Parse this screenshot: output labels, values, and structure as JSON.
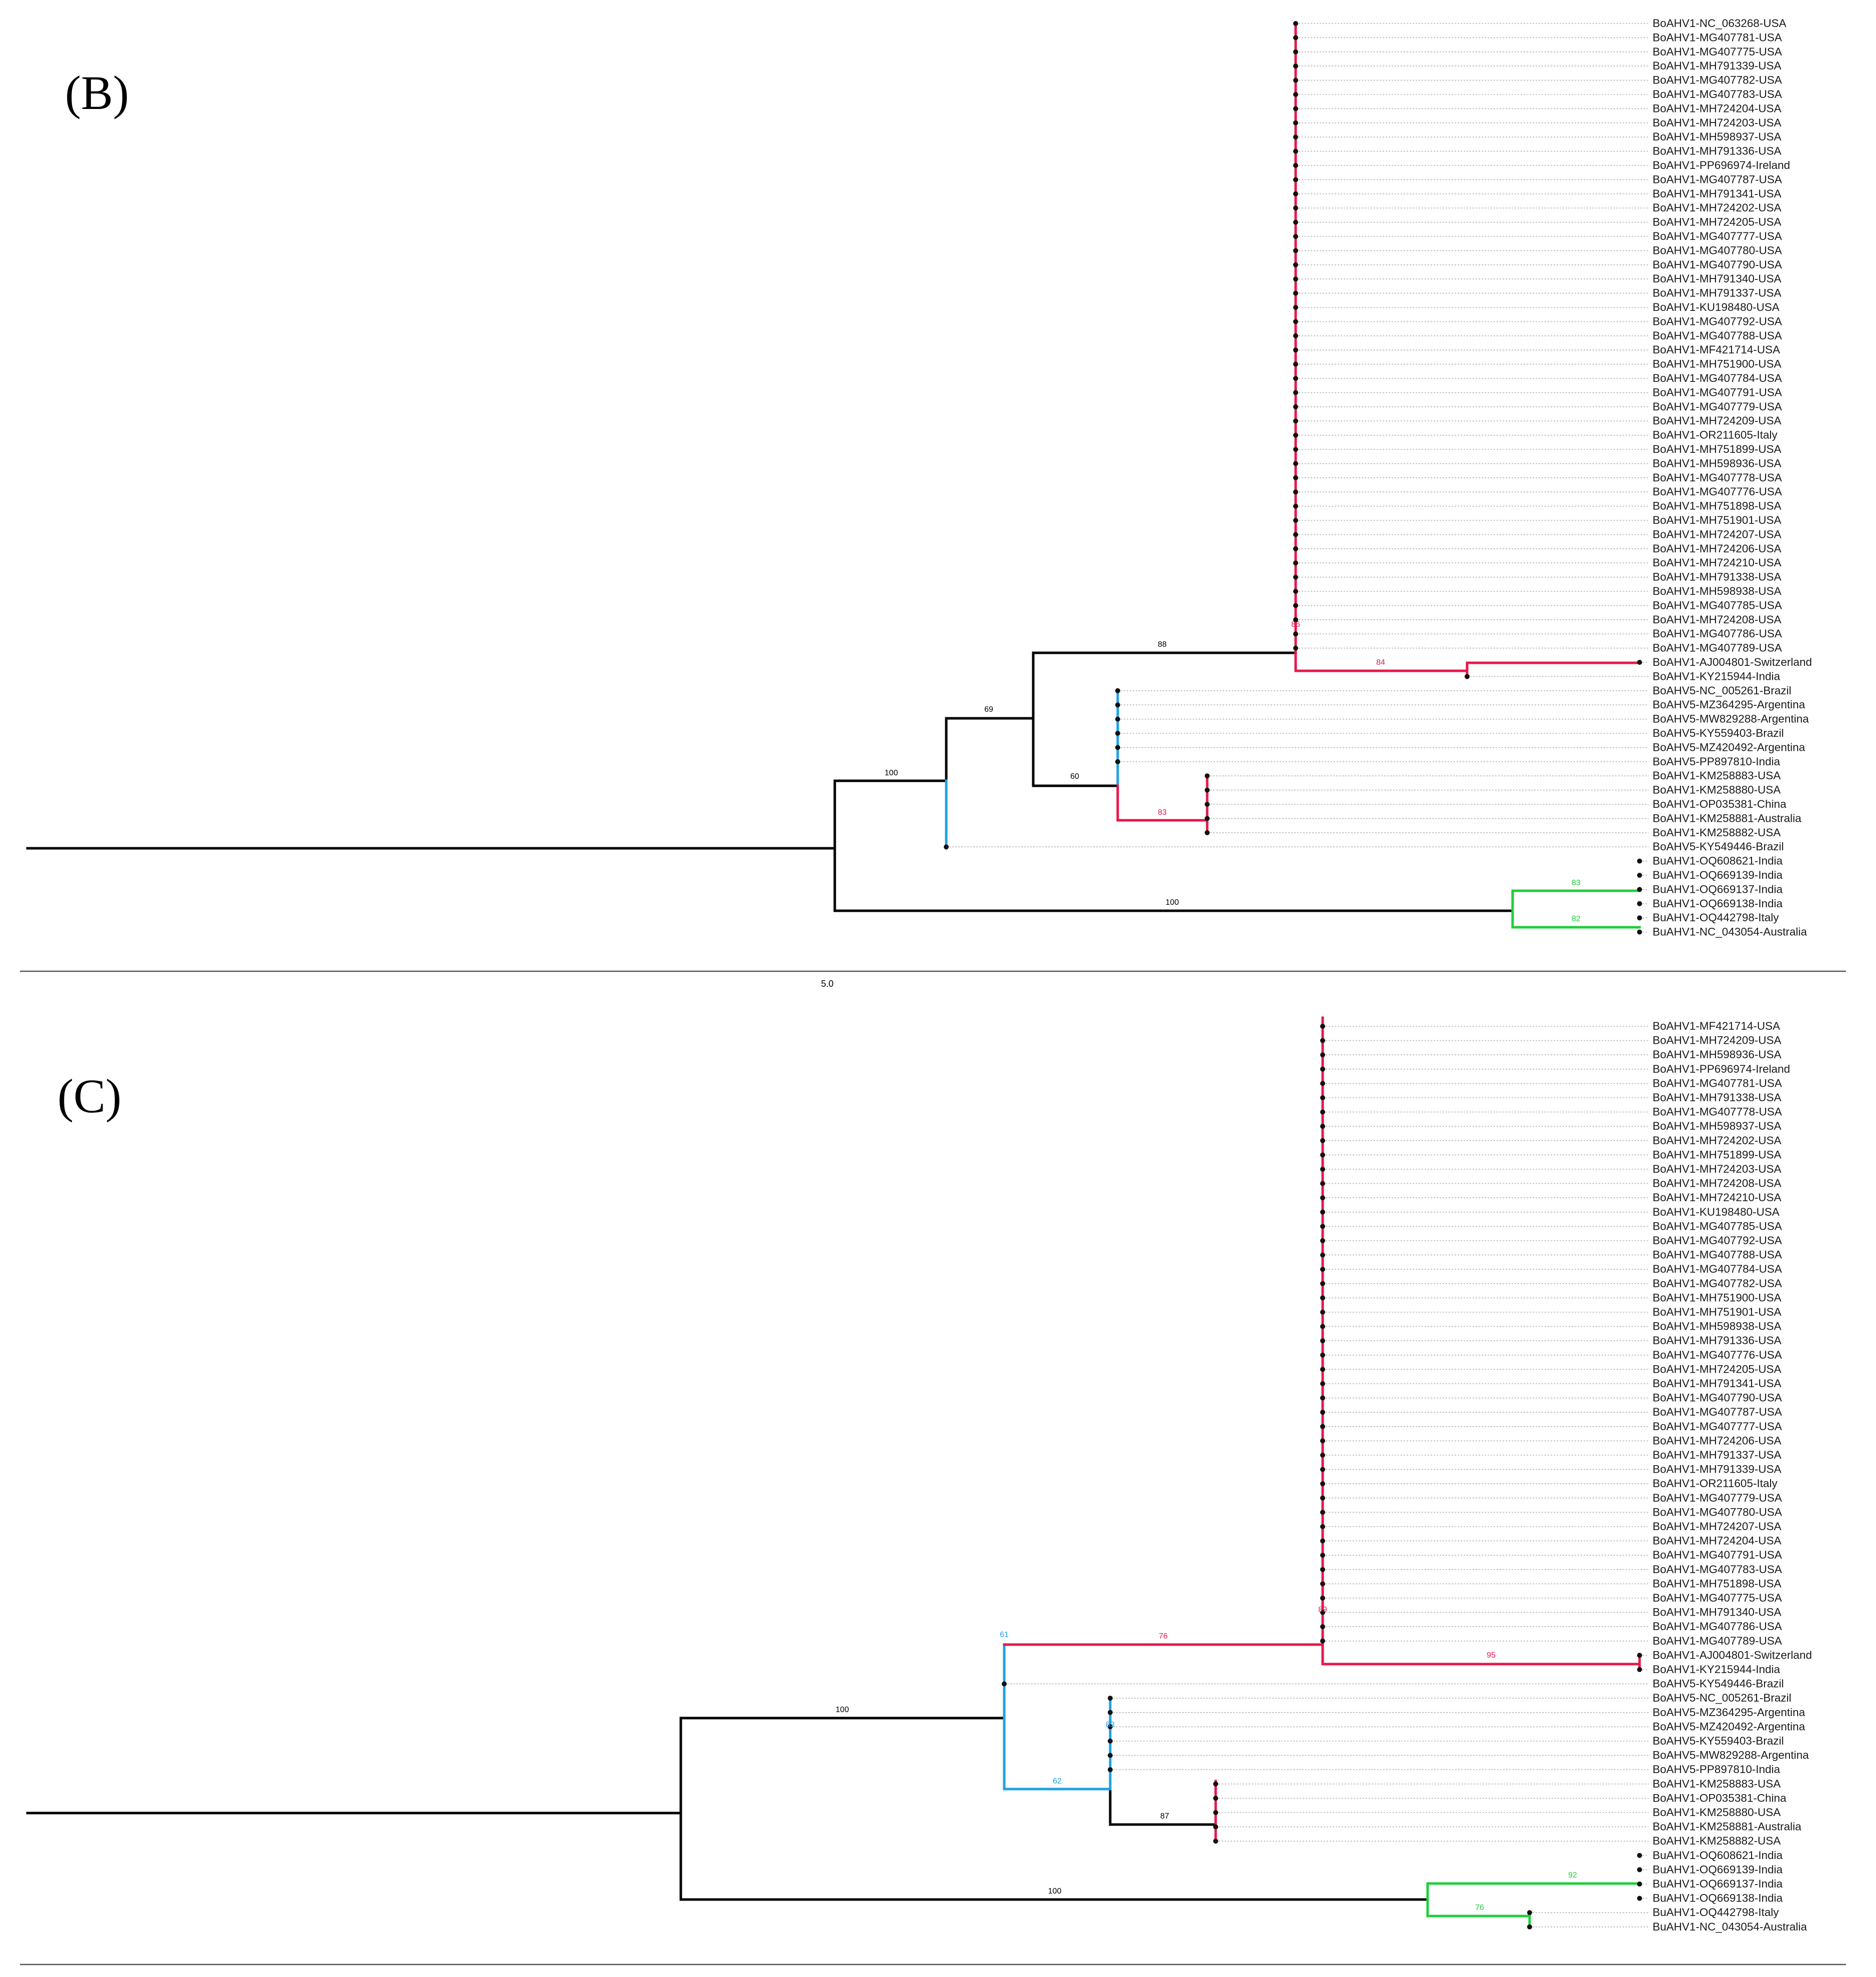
{
  "colors": {
    "black": "#000000",
    "red": "#e8174a",
    "blue": "#1ea1e6",
    "green": "#1ed03a",
    "dotted": "#b5b5b5"
  },
  "panels": [
    {
      "id": "B",
      "letter": "(B)",
      "scale_label": "5.0",
      "leaves": [
        "BoAHV1-NC_063268-USA",
        "BoAHV1-MG407781-USA",
        "BoAHV1-MG407775-USA",
        "BoAHV1-MH791339-USA",
        "BoAHV1-MG407782-USA",
        "BoAHV1-MG407783-USA",
        "BoAHV1-MH724204-USA",
        "BoAHV1-MH724203-USA",
        "BoAHV1-MH598937-USA",
        "BoAHV1-MH791336-USA",
        "BoAHV1-PP696974-Ireland",
        "BoAHV1-MG407787-USA",
        "BoAHV1-MH791341-USA",
        "BoAHV1-MH724202-USA",
        "BoAHV1-MH724205-USA",
        "BoAHV1-MG407777-USA",
        "BoAHV1-MG407780-USA",
        "BoAHV1-MG407790-USA",
        "BoAHV1-MH791340-USA",
        "BoAHV1-MH791337-USA",
        "BoAHV1-KU198480-USA",
        "BoAHV1-MG407792-USA",
        "BoAHV1-MG407788-USA",
        "BoAHV1-MF421714-USA",
        "BoAHV1-MH751900-USA",
        "BoAHV1-MG407784-USA",
        "BoAHV1-MG407791-USA",
        "BoAHV1-MG407779-USA",
        "BoAHV1-MH724209-USA",
        "BoAHV1-OR211605-Italy",
        "BoAHV1-MH751899-USA",
        "BoAHV1-MH598936-USA",
        "BoAHV1-MG407778-USA",
        "BoAHV1-MG407776-USA",
        "BoAHV1-MH751898-USA",
        "BoAHV1-MH751901-USA",
        "BoAHV1-MH724207-USA",
        "BoAHV1-MH724206-USA",
        "BoAHV1-MH724210-USA",
        "BoAHV1-MH791338-USA",
        "BoAHV1-MH598938-USA",
        "BoAHV1-MG407785-USA",
        "BoAHV1-MH724208-USA",
        "BoAHV1-MG407786-USA",
        "BoAHV1-MG407789-USA",
        "BoAHV1-AJ004801-Switzerland",
        "BoAHV1-KY215944-India",
        "BoAHV5-NC_005261-Brazil",
        "BoAHV5-MZ364295-Argentina",
        "BoAHV5-MW829288-Argentina",
        "BoAHV5-KY559403-Brazil",
        "BoAHV5-MZ420492-Argentina",
        "BoAHV5-PP897810-India",
        "BoAHV1-KM258883-USA",
        "BoAHV1-KM258880-USA",
        "BoAHV1-OP035381-China",
        "BoAHV1-KM258881-Australia",
        "BoAHV1-KM258882-USA",
        "BoAHV5-KY549446-Brazil",
        "BuAHV1-OQ608621-India",
        "BuAHV1-OQ669139-India",
        "BuAHV1-OQ669137-India",
        "BuAHV1-OQ669138-India",
        "BuAHV1-OQ442798-Italy",
        "BuAHV1-NC_043054-Australia"
      ],
      "supports": [
        "88",
        "69",
        "100",
        "60",
        "84",
        "83",
        "100",
        "83",
        "82",
        "86"
      ]
    },
    {
      "id": "C",
      "letter": "(C)",
      "leaves": [
        "BoAHV1-MF421714-USA",
        "BoAHV1-MH724209-USA",
        "BoAHV1-MH598936-USA",
        "BoAHV1-PP696974-Ireland",
        "BoAHV1-MG407781-USA",
        "BoAHV1-MH791338-USA",
        "BoAHV1-MG407778-USA",
        "BoAHV1-MH598937-USA",
        "BoAHV1-MH724202-USA",
        "BoAHV1-MH751899-USA",
        "BoAHV1-MH724203-USA",
        "BoAHV1-MH724208-USA",
        "BoAHV1-MH724210-USA",
        "BoAHV1-KU198480-USA",
        "BoAHV1-MG407785-USA",
        "BoAHV1-MG407792-USA",
        "BoAHV1-MG407788-USA",
        "BoAHV1-MG407784-USA",
        "BoAHV1-MG407782-USA",
        "BoAHV1-MH751900-USA",
        "BoAHV1-MH751901-USA",
        "BoAHV1-MH598938-USA",
        "BoAHV1-MH791336-USA",
        "BoAHV1-MG407776-USA",
        "BoAHV1-MH724205-USA",
        "BoAHV1-MH791341-USA",
        "BoAHV1-MG407790-USA",
        "BoAHV1-MG407787-USA",
        "BoAHV1-MG407777-USA",
        "BoAHV1-MH724206-USA",
        "BoAHV1-MH791337-USA",
        "BoAHV1-MH791339-USA",
        "BoAHV1-OR211605-Italy",
        "BoAHV1-MG407779-USA",
        "BoAHV1-MG407780-USA",
        "BoAHV1-MH724207-USA",
        "BoAHV1-MH724204-USA",
        "BoAHV1-MG407791-USA",
        "BoAHV1-MG407783-USA",
        "BoAHV1-MH751898-USA",
        "BoAHV1-MG407775-USA",
        "BoAHV1-MH791340-USA",
        "BoAHV1-MG407786-USA",
        "BoAHV1-MG407789-USA",
        "BoAHV1-AJ004801-Switzerland",
        "BoAHV1-KY215944-India",
        "BoAHV5-KY549446-Brazil",
        "BoAHV5-NC_005261-Brazil",
        "BoAHV5-MZ364295-Argentina",
        "BoAHV5-MZ420492-Argentina",
        "BoAHV5-KY559403-Brazil",
        "BoAHV5-MW829288-Argentina",
        "BoAHV5-PP897810-India",
        "BoAHV1-KM258883-USA",
        "BoAHV1-OP035381-China",
        "BoAHV1-KM258880-USA",
        "BoAHV1-KM258881-Australia",
        "BoAHV1-KM258882-USA",
        "BuAHV1-OQ608621-India",
        "BuAHV1-OQ669139-India",
        "BuAHV1-OQ669137-India",
        "BuAHV1-OQ669138-India",
        "BuAHV1-OQ442798-Italy",
        "BuAHV1-NC_043054-Australia"
      ],
      "supports": [
        "76",
        "95",
        "100",
        "62",
        "87",
        "100",
        "92",
        "76",
        "61",
        "83",
        "89"
      ]
    }
  ]
}
